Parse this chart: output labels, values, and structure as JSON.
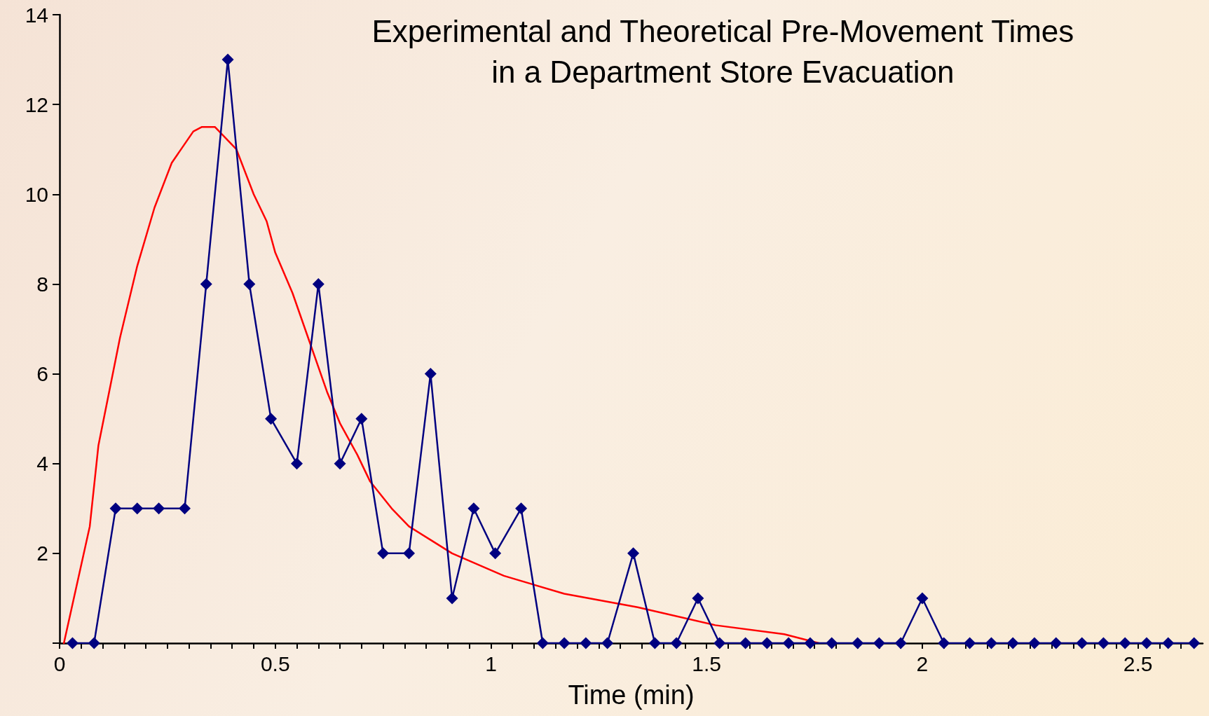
{
  "chart_data": {
    "type": "line",
    "title": "Experimental and Theoretical Pre-Movement Times\nin a Department Store Evacuation",
    "xlabel": "Time (min)",
    "xlim": [
      0,
      2.65
    ],
    "xticks": [
      0,
      0.5,
      1,
      1.5,
      2,
      2.5
    ],
    "ylim": [
      0,
      14
    ],
    "yticks": [
      {
        "value": 0,
        "label": null
      },
      2,
      4,
      6,
      8,
      10,
      12,
      14
    ],
    "grid": false,
    "series": [
      {
        "color": "#000080",
        "marker": "diamond",
        "x": [
          0.03,
          0.08,
          0.13,
          0.18,
          0.23,
          0.29,
          0.34,
          0.39,
          0.44,
          0.49,
          0.55,
          0.6,
          0.65,
          0.7,
          0.75,
          0.81,
          0.86,
          0.91,
          0.96,
          1.01,
          1.07,
          1.12,
          1.17,
          1.22,
          1.27,
          1.33,
          1.38,
          1.43,
          1.48,
          1.53,
          1.59,
          1.64,
          1.69,
          1.74,
          1.79,
          1.85,
          1.9,
          1.95,
          2,
          2.05,
          2.11,
          2.16,
          2.21,
          2.26,
          2.31,
          2.37,
          2.42,
          2.47,
          2.52,
          2.57,
          2.63
        ],
        "values": [
          0,
          0,
          3,
          3,
          3,
          3,
          8,
          13,
          8,
          5,
          4,
          8,
          4,
          5,
          2,
          2,
          6,
          1,
          3,
          2,
          3,
          0,
          0,
          0,
          0,
          2,
          0,
          0,
          1,
          0,
          0,
          0,
          0,
          0,
          0,
          0,
          0,
          0,
          1,
          0,
          0,
          0,
          0,
          0,
          0,
          0,
          0,
          0,
          0,
          0,
          0
        ]
      },
      {
        "color": "#ff0000",
        "marker": "none",
        "x": [
          0.01,
          0.07,
          0.09,
          0.14,
          0.18,
          0.22,
          0.26,
          0.31,
          0.33,
          0.36,
          0.41,
          0.45,
          0.48,
          0.5,
          0.54,
          0.58,
          0.62,
          0.65,
          0.69,
          0.72,
          0.77,
          0.81,
          0.86,
          0.91,
          1.03,
          1.17,
          1.34,
          1.52,
          1.68,
          1.76
        ],
        "values": [
          0,
          2.6,
          4.4,
          6.8,
          8.4,
          9.7,
          10.7,
          11.4,
          11.5,
          11.5,
          11,
          10,
          9.4,
          8.7,
          7.8,
          6.7,
          5.6,
          4.9,
          4.2,
          3.6,
          3,
          2.6,
          2.3,
          2,
          1.5,
          1.1,
          0.8,
          0.4,
          0.2,
          0
        ]
      }
    ]
  }
}
